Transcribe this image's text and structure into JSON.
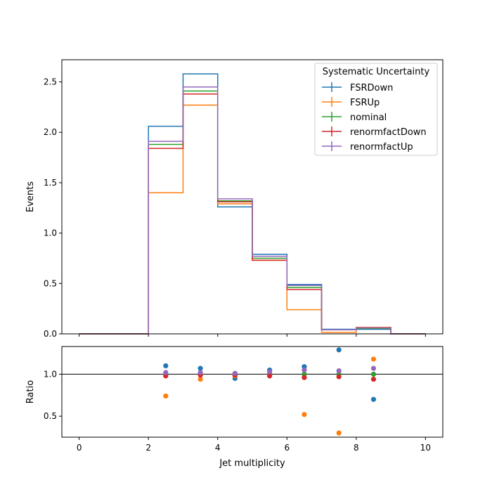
{
  "chart_data": {
    "type": "histogram_with_ratio",
    "xlabel": "Jet multiplicity",
    "xlim": [
      -0.5,
      10.5
    ],
    "x_ticks": [
      0,
      2,
      4,
      6,
      8,
      10
    ],
    "bin_edges": [
      0,
      1,
      2,
      3,
      4,
      5,
      6,
      7,
      8,
      9,
      10
    ],
    "main": {
      "ylabel": "Events",
      "ylim": [
        0,
        2.72
      ],
      "y_ticks": [
        "0.0",
        "0.5",
        "1.0",
        "1.5",
        "2.0",
        "2.5"
      ],
      "legend_title": "Systematic Uncertainty",
      "legend_position": "top-right",
      "series": [
        {
          "name": "FSRDown",
          "color": "#1f77b4",
          "values": [
            0,
            0,
            2.06,
            2.58,
            1.26,
            0.79,
            0.49,
            0.045,
            0.045,
            0
          ]
        },
        {
          "name": "FSRUp",
          "color": "#ff7f0e",
          "values": [
            0,
            0,
            1.4,
            2.27,
            1.29,
            0.73,
            0.24,
            0.015,
            0.065,
            0
          ]
        },
        {
          "name": "nominal",
          "color": "#2ca02c",
          "values": [
            0,
            0,
            1.88,
            2.41,
            1.32,
            0.75,
            0.46,
            0.04,
            0.055,
            0
          ]
        },
        {
          "name": "renormfactDown",
          "color": "#d62728",
          "values": [
            0,
            0,
            1.84,
            2.38,
            1.31,
            0.73,
            0.44,
            0.04,
            0.06,
            0
          ]
        },
        {
          "name": "renormfactUp",
          "color": "#9467bd",
          "values": [
            0,
            0,
            1.91,
            2.45,
            1.34,
            0.77,
            0.48,
            0.04,
            0.06,
            0
          ]
        }
      ]
    },
    "ratio": {
      "ylabel": "Ratio",
      "ylim": [
        0.25,
        1.33
      ],
      "y_ticks": [
        "0.5",
        "1.0"
      ],
      "reference_line": 1.0,
      "x": [
        2.5,
        3.5,
        4.5,
        5.5,
        6.5,
        7.5,
        8.5
      ],
      "series": [
        {
          "name": "FSRDown",
          "color": "#1f77b4",
          "values": [
            1.1,
            1.07,
            0.95,
            1.05,
            1.09,
            1.29,
            0.7
          ]
        },
        {
          "name": "FSRUp",
          "color": "#ff7f0e",
          "values": [
            0.74,
            0.94,
            0.98,
            0.98,
            0.52,
            0.3,
            1.18
          ]
        },
        {
          "name": "nominal",
          "color": "#2ca02c",
          "values": [
            1.0,
            1.0,
            1.0,
            1.0,
            1.0,
            1.0,
            1.0
          ]
        },
        {
          "name": "renormfactDown",
          "color": "#d62728",
          "values": [
            0.98,
            0.99,
            0.99,
            0.98,
            0.96,
            0.97,
            0.94
          ]
        },
        {
          "name": "renormfactUp",
          "color": "#9467bd",
          "values": [
            1.02,
            1.02,
            1.01,
            1.03,
            1.05,
            1.04,
            1.07
          ]
        }
      ]
    }
  }
}
